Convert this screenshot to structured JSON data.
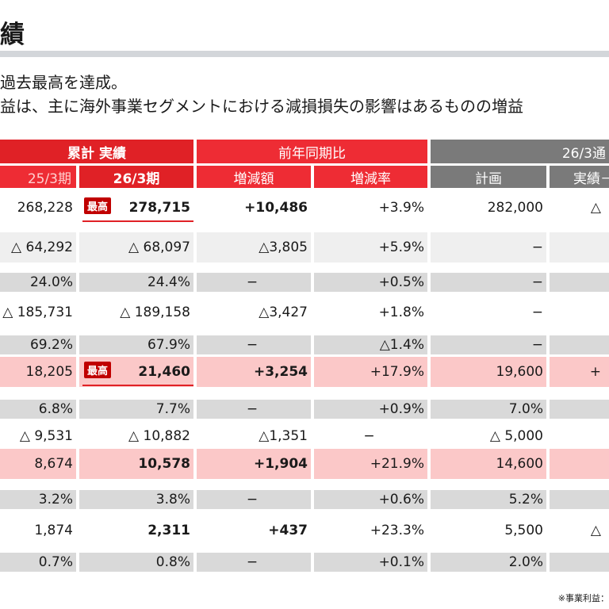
{
  "title": "績",
  "subtitle_lines": [
    "過去最高を達成。",
    "益は、主に海外事業セグメントにおける減損損失の影響はあるものの増益"
  ],
  "headers": {
    "cumulative": "累計 実績",
    "yoy": "前年同期比",
    "forecast_group": "26/3通",
    "col_prev": "25/3期",
    "col_curr": "26/3期",
    "col_diff": "増減額",
    "col_rate": "増減率",
    "col_plan": "計画",
    "col_vs": "実績－"
  },
  "badge_text": "最高",
  "rows": [
    {
      "type": "tall",
      "bg": "white",
      "prev": "268,228",
      "curr": "278,715",
      "diff": "+10,486",
      "rate": "+3.9%",
      "plan": "282,000",
      "extra": "△",
      "badge": true,
      "bold": true
    },
    {
      "type": "tall",
      "bg": "light",
      "prev": "△ 64,292",
      "curr": "△ 68,097",
      "diff": "△3,805",
      "rate": "+5.9%",
      "plan": "−",
      "extra": "",
      "badge": false,
      "bold": false
    },
    {
      "type": "short",
      "bg": "gray",
      "prev": "24.0%",
      "curr": "24.4%",
      "diff": "−",
      "rate": "+0.5%",
      "plan": "−",
      "extra": "",
      "badge": false,
      "bold": false
    },
    {
      "type": "tall",
      "bg": "white",
      "prev": "△ 185,731",
      "curr": "△ 189,158",
      "diff": "△3,427",
      "rate": "+1.8%",
      "plan": "−",
      "extra": "",
      "badge": false,
      "bold": false
    },
    {
      "type": "short",
      "bg": "gray",
      "prev": "69.2%",
      "curr": "67.9%",
      "diff": "−",
      "rate": "△1.4%",
      "plan": "−",
      "extra": "",
      "badge": false,
      "bold": false
    },
    {
      "type": "tall",
      "bg": "pink",
      "prev": "18,205",
      "curr": "21,460",
      "diff": "+3,254",
      "rate": "+17.9%",
      "plan": "19,600",
      "extra": "+",
      "badge": true,
      "bold": true
    },
    {
      "type": "short",
      "bg": "gray",
      "prev": "6.8%",
      "curr": "7.7%",
      "diff": "−",
      "rate": "+0.9%",
      "plan": "7.0%",
      "extra": "",
      "badge": false,
      "bold": false
    },
    {
      "type": "tall",
      "bg": "white",
      "prev": "△ 9,531",
      "curr": "△ 10,882",
      "diff": "△1,351",
      "rate": "−",
      "plan": "△ 5,000",
      "extra": "",
      "badge": false,
      "bold": false
    },
    {
      "type": "tall",
      "bg": "pink",
      "prev": "8,674",
      "curr": "10,578",
      "diff": "+1,904",
      "rate": "+21.9%",
      "plan": "14,600",
      "extra": "",
      "badge": false,
      "bold": true
    },
    {
      "type": "short",
      "bg": "gray",
      "prev": "3.2%",
      "curr": "3.8%",
      "diff": "−",
      "rate": "+0.6%",
      "plan": "5.2%",
      "extra": "",
      "badge": false,
      "bold": false
    },
    {
      "type": "tall",
      "bg": "white",
      "prev": "1,874",
      "curr": "2,311",
      "diff": "+437",
      "rate": "+23.3%",
      "plan": "5,500",
      "extra": "△",
      "badge": false,
      "bold": true
    },
    {
      "type": "short",
      "bg": "gray",
      "prev": "0.7%",
      "curr": "0.8%",
      "diff": "−",
      "rate": "+0.1%",
      "plan": "2.0%",
      "extra": "",
      "badge": false,
      "bold": false
    }
  ],
  "footnote": "※事業利益："
}
